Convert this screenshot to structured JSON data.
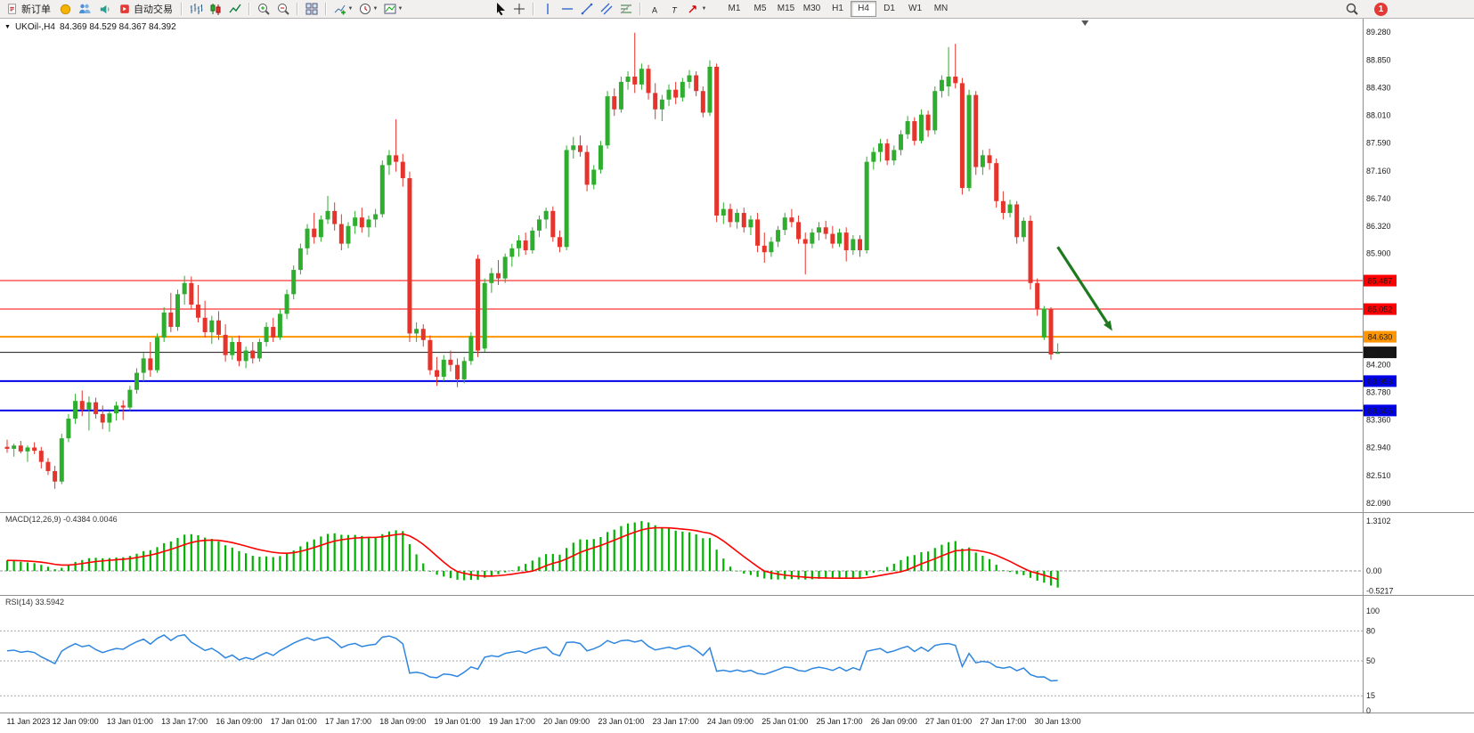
{
  "toolbar": {
    "new_order": "新订单",
    "autotrading": "自动交易",
    "timeframes": [
      "M1",
      "M5",
      "M15",
      "M30",
      "H1",
      "H4",
      "D1",
      "W1",
      "MN"
    ],
    "active_timeframe": "H4",
    "notification_count": "1",
    "icon_names": [
      "new-order-icon",
      "gold-icon",
      "community-icon",
      "alerts-icon",
      "autotrading-icon",
      "bar-chart-icon",
      "candlestick-chart-icon",
      "line-chart-icon",
      "zoom-in-icon",
      "zoom-out-icon",
      "tile-windows-icon",
      "indicators-icon",
      "periods-icon",
      "templates-icon",
      "cursor-icon",
      "crosshair-icon",
      "vertical-line-icon",
      "horizontal-line-icon",
      "trendline-icon",
      "channel-icon",
      "fibonacci-icon",
      "text-icon",
      "text-label-icon",
      "arrows-icon",
      "search-icon",
      "chevron-down-icon"
    ]
  },
  "chart": {
    "title": "UKOil-,H4",
    "ohlc": "84.369 84.529 84.367 84.392"
  },
  "chart_data": {
    "type": "candlestick",
    "symbol": "UKOil-",
    "timeframe": "H4",
    "current_bar": {
      "open": 84.369,
      "high": 84.529,
      "low": 84.367,
      "close": 84.392
    },
    "y_axis_ticks": [
      "89.280",
      "88.850",
      "88.430",
      "88.010",
      "87.590",
      "87.160",
      "86.740",
      "86.320",
      "85.900",
      "84.200",
      "83.780",
      "83.360",
      "82.940",
      "82.510",
      "82.090"
    ],
    "price_lines": [
      {
        "price": 85.487,
        "label": "85.487",
        "color": "#ff0000",
        "width": 1
      },
      {
        "price": 85.052,
        "label": "85.052",
        "color": "#ff0000",
        "width": 1
      },
      {
        "price": 84.63,
        "label": "84.630",
        "color": "#ff9500",
        "width": 2
      },
      {
        "price": 84.392,
        "label": "84.392",
        "color": "#151515",
        "width": 1,
        "current": true
      },
      {
        "price": 83.953,
        "label": "83.953",
        "color": "#0000e8",
        "width": 2
      },
      {
        "price": 83.505,
        "label": "83.505",
        "color": "#0000e8",
        "width": 2
      }
    ],
    "x_labels": [
      {
        "i": 2,
        "t": "11 Jan 2023"
      },
      {
        "i": 10,
        "t": "12 Jan 09:00"
      },
      {
        "i": 18,
        "t": "13 Jan 01:00"
      },
      {
        "i": 26,
        "t": "13 Jan 17:00"
      },
      {
        "i": 34,
        "t": "16 Jan 09:00"
      },
      {
        "i": 42,
        "t": "17 Jan 01:00"
      },
      {
        "i": 50,
        "t": "17 Jan 17:00"
      },
      {
        "i": 58,
        "t": "18 Jan 09:00"
      },
      {
        "i": 66,
        "t": "19 Jan 01:00"
      },
      {
        "i": 74,
        "t": "19 Jan 17:00"
      },
      {
        "i": 82,
        "t": "20 Jan 09:00"
      },
      {
        "i": 90,
        "t": "23 Jan 01:00"
      },
      {
        "i": 98,
        "t": "23 Jan 17:00"
      },
      {
        "i": 106,
        "t": "24 Jan 09:00"
      },
      {
        "i": 114,
        "t": "25 Jan 01:00"
      },
      {
        "i": 122,
        "t": "25 Jan 17:00"
      },
      {
        "i": 130,
        "t": "26 Jan 09:00"
      },
      {
        "i": 138,
        "t": "27 Jan 01:00"
      },
      {
        "i": 146,
        "t": "27 Jan 17:00"
      },
      {
        "i": 154,
        "t": "30 Jan 13:00"
      }
    ],
    "candles": [
      [
        82.95,
        83.06,
        82.86,
        82.92
      ],
      [
        82.92,
        83.0,
        82.8,
        82.97
      ],
      [
        82.97,
        83.04,
        82.85,
        82.88
      ],
      [
        82.88,
        82.97,
        82.72,
        82.94
      ],
      [
        82.94,
        83.02,
        82.84,
        82.89
      ],
      [
        82.89,
        82.95,
        82.62,
        82.72
      ],
      [
        82.72,
        82.78,
        82.52,
        82.58
      ],
      [
        82.58,
        82.66,
        82.31,
        82.42
      ],
      [
        82.42,
        83.15,
        82.38,
        83.08
      ],
      [
        83.08,
        83.45,
        83.02,
        83.38
      ],
      [
        83.38,
        83.76,
        83.3,
        83.65
      ],
      [
        83.65,
        83.81,
        83.42,
        83.52
      ],
      [
        83.52,
        83.72,
        83.2,
        83.63
      ],
      [
        83.63,
        83.7,
        83.38,
        83.45
      ],
      [
        83.45,
        83.58,
        83.22,
        83.32
      ],
      [
        83.32,
        83.5,
        83.18,
        83.46
      ],
      [
        83.46,
        83.64,
        83.35,
        83.58
      ],
      [
        83.58,
        83.66,
        83.36,
        83.55
      ],
      [
        83.55,
        83.88,
        83.5,
        83.82
      ],
      [
        83.82,
        84.15,
        83.76,
        84.08
      ],
      [
        84.08,
        84.38,
        83.95,
        84.3
      ],
      [
        84.3,
        84.55,
        84.02,
        84.12
      ],
      [
        84.12,
        84.68,
        84.08,
        84.62
      ],
      [
        84.62,
        85.08,
        84.55,
        85.0
      ],
      [
        85.0,
        85.3,
        84.7,
        84.78
      ],
      [
        84.78,
        85.35,
        84.72,
        85.28
      ],
      [
        85.28,
        85.56,
        85.12,
        85.45
      ],
      [
        85.45,
        85.55,
        85.05,
        85.12
      ],
      [
        85.12,
        85.42,
        84.85,
        84.92
      ],
      [
        84.92,
        85.18,
        84.62,
        84.7
      ],
      [
        84.7,
        84.95,
        84.52,
        84.88
      ],
      [
        84.88,
        85.02,
        84.58,
        84.66
      ],
      [
        84.66,
        84.82,
        84.25,
        84.35
      ],
      [
        84.35,
        84.62,
        84.28,
        84.55
      ],
      [
        84.55,
        84.65,
        84.18,
        84.26
      ],
      [
        84.26,
        84.48,
        84.15,
        84.42
      ],
      [
        84.42,
        84.55,
        84.22,
        84.3
      ],
      [
        84.3,
        84.6,
        84.25,
        84.55
      ],
      [
        84.55,
        84.85,
        84.48,
        84.78
      ],
      [
        84.78,
        84.92,
        84.55,
        84.62
      ],
      [
        84.62,
        85.05,
        84.58,
        84.98
      ],
      [
        84.98,
        85.35,
        84.9,
        85.28
      ],
      [
        85.28,
        85.72,
        85.2,
        85.65
      ],
      [
        85.65,
        86.05,
        85.58,
        85.98
      ],
      [
        85.98,
        86.35,
        85.88,
        86.28
      ],
      [
        86.28,
        86.52,
        86.05,
        86.15
      ],
      [
        86.15,
        86.48,
        86.08,
        86.42
      ],
      [
        86.42,
        86.78,
        86.35,
        86.55
      ],
      [
        86.55,
        86.68,
        86.25,
        86.35
      ],
      [
        86.35,
        86.5,
        85.95,
        86.05
      ],
      [
        86.05,
        86.38,
        85.98,
        86.32
      ],
      [
        86.32,
        86.55,
        86.2,
        86.45
      ],
      [
        86.45,
        86.6,
        86.22,
        86.3
      ],
      [
        86.3,
        86.48,
        86.15,
        86.42
      ],
      [
        86.42,
        86.58,
        86.3,
        86.5
      ],
      [
        86.5,
        87.32,
        86.45,
        87.25
      ],
      [
        87.25,
        87.48,
        87.1,
        87.4
      ],
      [
        87.4,
        87.95,
        87.15,
        87.3
      ],
      [
        87.3,
        87.42,
        86.92,
        87.05
      ],
      [
        87.05,
        87.15,
        84.55,
        84.68
      ],
      [
        84.68,
        84.85,
        84.55,
        84.75
      ],
      [
        84.75,
        84.82,
        84.48,
        84.58
      ],
      [
        84.58,
        84.65,
        84.05,
        84.12
      ],
      [
        84.12,
        84.32,
        83.88,
        84.02
      ],
      [
        84.02,
        84.35,
        83.95,
        84.28
      ],
      [
        84.28,
        84.42,
        84.1,
        84.2
      ],
      [
        84.2,
        84.3,
        83.86,
        83.98
      ],
      [
        83.98,
        84.32,
        83.92,
        84.26
      ],
      [
        84.26,
        84.7,
        84.2,
        84.64
      ],
      [
        85.82,
        85.88,
        84.32,
        84.42
      ],
      [
        84.45,
        85.52,
        84.4,
        85.45
      ],
      [
        85.45,
        85.68,
        85.3,
        85.6
      ],
      [
        85.6,
        85.8,
        85.42,
        85.52
      ],
      [
        85.52,
        85.9,
        85.45,
        85.85
      ],
      [
        85.85,
        86.05,
        85.7,
        85.98
      ],
      [
        85.98,
        86.18,
        85.85,
        86.1
      ],
      [
        86.1,
        86.22,
        85.88,
        85.95
      ],
      [
        85.95,
        86.3,
        85.9,
        86.25
      ],
      [
        86.25,
        86.48,
        86.15,
        86.42
      ],
      [
        86.42,
        86.6,
        86.28,
        86.55
      ],
      [
        86.55,
        86.62,
        86.08,
        86.15
      ],
      [
        86.15,
        86.25,
        85.92,
        86.0
      ],
      [
        86.0,
        87.55,
        85.95,
        87.48
      ],
      [
        87.48,
        87.68,
        87.35,
        87.55
      ],
      [
        87.55,
        87.7,
        87.38,
        87.45
      ],
      [
        87.45,
        87.55,
        86.85,
        86.95
      ],
      [
        86.95,
        87.25,
        86.88,
        87.18
      ],
      [
        87.18,
        87.62,
        87.12,
        87.55
      ],
      [
        87.55,
        88.38,
        87.5,
        88.3
      ],
      [
        88.3,
        88.42,
        88.0,
        88.1
      ],
      [
        88.1,
        88.6,
        88.05,
        88.52
      ],
      [
        88.52,
        88.68,
        88.4,
        88.6
      ],
      [
        88.6,
        89.27,
        88.35,
        88.48
      ],
      [
        88.48,
        88.8,
        88.4,
        88.72
      ],
      [
        88.72,
        88.78,
        88.25,
        88.35
      ],
      [
        88.35,
        88.5,
        87.95,
        88.1
      ],
      [
        88.1,
        88.32,
        87.92,
        88.25
      ],
      [
        88.25,
        88.48,
        88.15,
        88.4
      ],
      [
        88.4,
        88.52,
        88.18,
        88.28
      ],
      [
        88.28,
        88.58,
        88.22,
        88.52
      ],
      [
        88.52,
        88.7,
        88.42,
        88.62
      ],
      [
        88.62,
        88.68,
        88.3,
        88.38
      ],
      [
        88.38,
        88.45,
        87.98,
        88.05
      ],
      [
        88.05,
        88.85,
        88.0,
        88.75
      ],
      [
        88.75,
        88.8,
        86.38,
        86.48
      ],
      [
        86.48,
        86.68,
        86.35,
        86.58
      ],
      [
        86.58,
        86.66,
        86.3,
        86.38
      ],
      [
        86.38,
        86.58,
        86.28,
        86.52
      ],
      [
        86.52,
        86.6,
        86.22,
        86.3
      ],
      [
        86.3,
        86.48,
        86.18,
        86.42
      ],
      [
        86.42,
        86.52,
        85.92,
        86.02
      ],
      [
        86.02,
        86.22,
        85.76,
        85.92
      ],
      [
        85.92,
        86.15,
        85.85,
        86.08
      ],
      [
        86.08,
        86.32,
        86.0,
        86.26
      ],
      [
        86.26,
        86.52,
        86.18,
        86.45
      ],
      [
        86.45,
        86.58,
        86.3,
        86.38
      ],
      [
        86.38,
        86.48,
        86.05,
        86.12
      ],
      [
        86.12,
        86.22,
        85.58,
        86.05
      ],
      [
        86.05,
        86.28,
        85.98,
        86.22
      ],
      [
        86.22,
        86.38,
        86.1,
        86.3
      ],
      [
        86.3,
        86.4,
        86.12,
        86.2
      ],
      [
        86.2,
        86.32,
        85.98,
        86.05
      ],
      [
        86.05,
        86.28,
        86.0,
        86.22
      ],
      [
        86.22,
        86.3,
        85.78,
        85.95
      ],
      [
        85.95,
        86.18,
        85.88,
        86.12
      ],
      [
        86.12,
        86.18,
        85.85,
        85.95
      ],
      [
        85.95,
        87.38,
        85.9,
        87.3
      ],
      [
        87.3,
        87.52,
        87.18,
        87.45
      ],
      [
        87.45,
        87.65,
        87.3,
        87.58
      ],
      [
        87.58,
        87.65,
        87.25,
        87.32
      ],
      [
        87.32,
        87.55,
        87.25,
        87.48
      ],
      [
        87.48,
        87.78,
        87.4,
        87.72
      ],
      [
        87.72,
        88.0,
        87.65,
        87.92
      ],
      [
        87.92,
        87.98,
        87.55,
        87.62
      ],
      [
        87.62,
        88.1,
        87.58,
        88.02
      ],
      [
        88.02,
        88.08,
        87.68,
        87.78
      ],
      [
        87.78,
        88.45,
        87.72,
        88.38
      ],
      [
        88.38,
        88.62,
        88.28,
        88.55
      ],
      [
        88.45,
        89.05,
        88.3,
        88.6
      ],
      [
        88.6,
        89.1,
        88.42,
        88.5
      ],
      [
        88.5,
        88.58,
        86.8,
        86.9
      ],
      [
        86.9,
        88.4,
        86.85,
        88.32
      ],
      [
        88.32,
        88.38,
        87.1,
        87.22
      ],
      [
        87.22,
        87.48,
        87.1,
        87.4
      ],
      [
        87.4,
        87.5,
        87.18,
        87.28
      ],
      [
        87.28,
        87.35,
        86.6,
        86.7
      ],
      [
        86.7,
        86.85,
        86.42,
        86.52
      ],
      [
        86.52,
        86.72,
        86.45,
        86.65
      ],
      [
        86.65,
        86.7,
        86.05,
        86.15
      ],
      [
        86.15,
        86.45,
        86.08,
        86.4
      ],
      [
        86.4,
        86.48,
        85.35,
        85.45
      ],
      [
        85.45,
        85.52,
        84.95,
        85.05
      ],
      [
        84.62,
        85.1,
        84.58,
        85.06
      ],
      [
        85.06,
        85.08,
        84.28,
        84.36
      ],
      [
        84.37,
        84.53,
        84.37,
        84.39
      ]
    ],
    "arrow": {
      "from": {
        "i": 154,
        "price": 86.0
      },
      "to": {
        "i": 162,
        "price": 84.72
      },
      "color": "#1f7a1f"
    },
    "shift_marker_i": 158,
    "macd": {
      "label": "MACD(12,26,9) -0.4384 0.0046",
      "fast": 12,
      "slow": 26,
      "signal": 9,
      "value": -0.4384,
      "signal_value": 0.0046,
      "axis_labels": [
        "1.3102",
        "0.00",
        "-0.5217"
      ],
      "axis_values": [
        1.3102,
        0.0,
        -0.5217
      ],
      "hist_color": "#00b200",
      "signal_color": "#ff0000"
    },
    "rsi": {
      "label": "RSI(14) 33.5942",
      "period": 14,
      "value": 33.5942,
      "axis_labels": [
        "100",
        "80",
        "50",
        "15",
        "0"
      ],
      "axis_values": [
        100,
        80,
        50,
        15,
        0
      ],
      "levels": [
        80,
        50,
        15
      ],
      "color": "#2e86e0"
    },
    "colors": {
      "up": "#2ead2e",
      "down": "#e5342c",
      "background": "#ffffff"
    }
  }
}
